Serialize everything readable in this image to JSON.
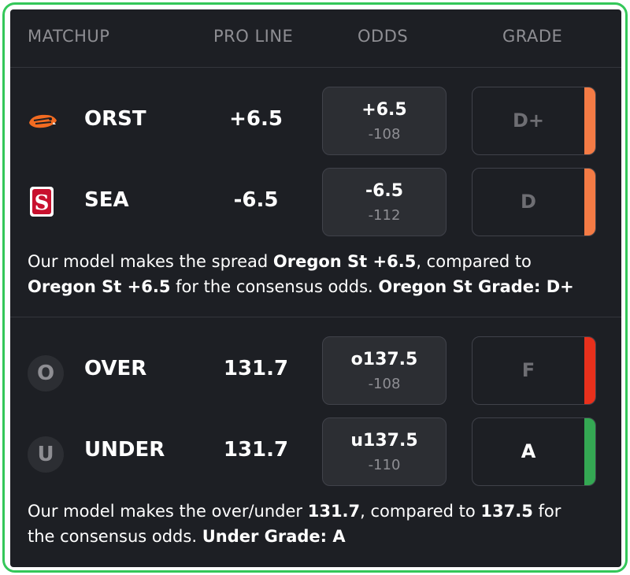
{
  "headers": {
    "matchup": "MATCHUP",
    "pro_line": "PRO LINE",
    "odds": "ODDS",
    "grade": "GRADE"
  },
  "spread": {
    "rows": [
      {
        "team": "ORST",
        "pro_line": "+6.5",
        "odds_line": "+6.5",
        "odds_price": "-108",
        "grade": "D+",
        "grade_color": "#f47b45",
        "icon": "beaver-logo-icon"
      },
      {
        "team": "SEA",
        "pro_line": "-6.5",
        "odds_line": "-6.5",
        "odds_price": "-112",
        "grade": "D",
        "grade_color": "#f47b45",
        "icon": "seattle-u-logo-icon"
      }
    ],
    "summary": {
      "t1": "Our model makes the spread ",
      "b1": "Oregon St +6.5",
      "t2": ", compared to",
      "b2": "Oregon St +6.5",
      "t3": " for the consensus odds. ",
      "b3": "Oregon St Grade: D+"
    }
  },
  "total": {
    "rows": [
      {
        "team": "OVER",
        "letter": "O",
        "pro_line": "131.7",
        "odds_line": "o137.5",
        "odds_price": "-108",
        "grade": "F",
        "grade_color": "#e8301c",
        "icon": "over-icon"
      },
      {
        "team": "UNDER",
        "letter": "U",
        "pro_line": "131.7",
        "odds_line": "u137.5",
        "odds_price": "-110",
        "grade": "A",
        "grade_color": "#34a853",
        "icon": "under-icon"
      }
    ],
    "summary": {
      "t1": "Our model makes the over/under ",
      "b1": "131.7",
      "t2": ", compared to ",
      "b2": "137.5",
      "t3": " for",
      "t4": "the consensus odds. ",
      "b3": "Under Grade: A"
    }
  }
}
